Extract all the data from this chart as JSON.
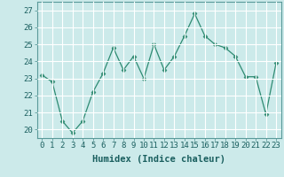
{
  "x": [
    0,
    1,
    2,
    3,
    4,
    5,
    6,
    7,
    8,
    9,
    10,
    11,
    12,
    13,
    14,
    15,
    16,
    17,
    18,
    19,
    20,
    21,
    22,
    23
  ],
  "y": [
    23.2,
    22.8,
    20.5,
    19.8,
    20.5,
    22.2,
    23.3,
    24.8,
    23.5,
    24.3,
    23.0,
    25.0,
    23.5,
    24.3,
    25.5,
    26.8,
    25.5,
    25.0,
    24.8,
    24.3,
    23.1,
    23.1,
    20.9,
    23.9
  ],
  "ylim": [
    19.5,
    27.5
  ],
  "yticks": [
    20,
    21,
    22,
    23,
    24,
    25,
    26,
    27
  ],
  "xlim": [
    -0.5,
    23.5
  ],
  "xticks": [
    0,
    1,
    2,
    3,
    4,
    5,
    6,
    7,
    8,
    9,
    10,
    11,
    12,
    13,
    14,
    15,
    16,
    17,
    18,
    19,
    20,
    21,
    22,
    23
  ],
  "xlabel": "Humidex (Indice chaleur)",
  "line_color": "#2e8b72",
  "marker": "D",
  "marker_size": 2.5,
  "bg_color": "#cceaea",
  "grid_color": "#ffffff",
  "text_color": "#1a5f5f",
  "tick_fontsize": 6.5,
  "xlabel_fontsize": 7.5,
  "spine_color": "#5a9a9a"
}
